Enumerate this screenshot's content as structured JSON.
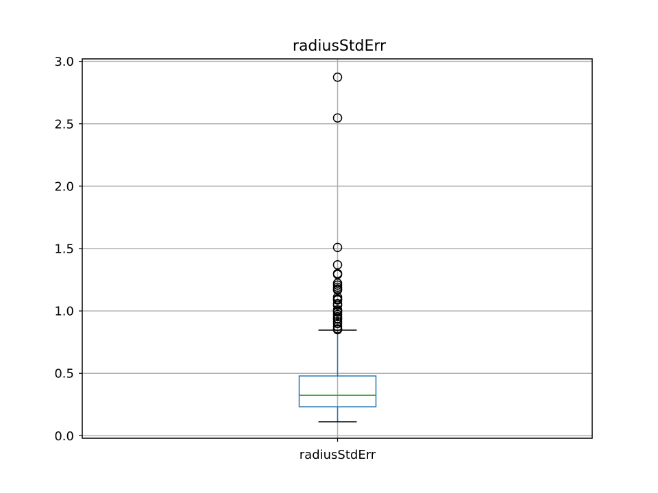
{
  "chart_data": {
    "type": "box",
    "title": "radiusStdErr",
    "categories": [
      "radiusStdErr"
    ],
    "xlabel": "",
    "ylabel": "",
    "ylim": [
      -0.02,
      3.02
    ],
    "yticks": [
      0.0,
      0.5,
      1.0,
      1.5,
      2.0,
      2.5,
      3.0
    ],
    "ytick_labels": [
      "0.0",
      "0.5",
      "1.0",
      "1.5",
      "2.0",
      "2.5",
      "3.0"
    ],
    "grid": true,
    "box": {
      "whisker_low": 0.112,
      "q1": 0.232,
      "median": 0.324,
      "q3": 0.479,
      "whisker_high": 0.846
    },
    "outliers": [
      2.873,
      2.547,
      1.509,
      1.37,
      1.3,
      1.292,
      1.222,
      1.207,
      1.19,
      1.176,
      1.167,
      1.111,
      1.095,
      1.088,
      1.058,
      1.046,
      1.009,
      1.0,
      0.99,
      0.971,
      0.955,
      0.94,
      0.935,
      0.914,
      0.899,
      0.875,
      0.857,
      0.85
    ],
    "colors": {
      "box": "#1f77b4",
      "median": "#2ca02c",
      "whisker_cap": "#000000",
      "flier": "#000000",
      "grid": "#b0b0b0"
    }
  }
}
